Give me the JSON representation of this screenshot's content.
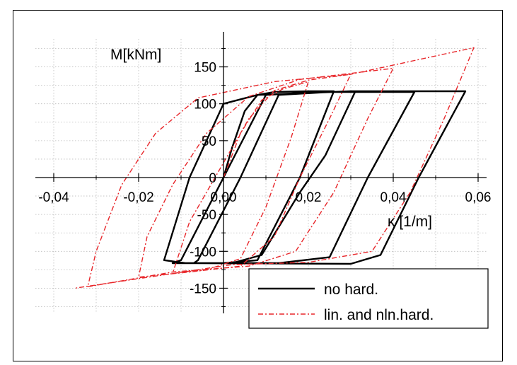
{
  "chart_data": {
    "type": "line",
    "title": "",
    "xlabel": "κ [1/m]",
    "ylabel": "M[kNm]",
    "xlim": [
      -0.05,
      0.062
    ],
    "ylim": [
      -190,
      190
    ],
    "xticks": [
      -0.04,
      -0.02,
      0.0,
      0.02,
      0.04,
      0.06
    ],
    "xtick_labels": [
      "-0,04",
      "-0,02",
      "0,00",
      "0,02",
      "0,04",
      "0,06"
    ],
    "yticks": [
      -150,
      -100,
      -50,
      0,
      50,
      100,
      150
    ],
    "ytick_labels": [
      "-150",
      "-100",
      "-50",
      "0",
      "50",
      "100",
      "150"
    ],
    "grid": "dotted",
    "legend": "bottom-right",
    "series": [
      {
        "name": "no hard.",
        "color": "#000000",
        "style": "solid",
        "points": [
          [
            0.0,
            0
          ],
          [
            0.002,
            40
          ],
          [
            0.005,
            90
          ],
          [
            0.008,
            112
          ],
          [
            0.012,
            116
          ],
          [
            0.02,
            117
          ],
          [
            0.026,
            117
          ],
          [
            0.018,
            0
          ],
          [
            0.008,
            -112
          ],
          [
            0.0,
            -116
          ],
          [
            -0.012,
            -116
          ],
          [
            -0.01,
            -112
          ],
          [
            0.0,
            0
          ],
          [
            0.01,
            112
          ],
          [
            0.022,
            116
          ],
          [
            0.031,
            116
          ],
          [
            0.024,
            30
          ],
          [
            0.018,
            -20
          ],
          [
            0.009,
            -105
          ],
          [
            0.002,
            -116
          ],
          [
            -0.007,
            -116
          ],
          [
            -0.006,
            -112
          ],
          [
            0.004,
            0
          ],
          [
            0.013,
            112
          ],
          [
            0.025,
            116
          ],
          [
            0.045,
            116
          ],
          [
            0.034,
            0
          ],
          [
            0.025,
            -108
          ],
          [
            0.013,
            -116
          ],
          [
            -0.009,
            -116
          ],
          [
            -0.014,
            -112
          ],
          [
            -0.008,
            0
          ],
          [
            0.0,
            100
          ],
          [
            0.008,
            112
          ],
          [
            0.03,
            117
          ],
          [
            0.057,
            117
          ],
          [
            0.046,
            0
          ],
          [
            0.037,
            -105
          ],
          [
            0.03,
            -117
          ],
          [
            -0.007,
            -116
          ]
        ]
      },
      {
        "name": "lin. and nln.hard.",
        "color": "#e8262a",
        "style": "dashdot",
        "points": [
          [
            0.0,
            0
          ],
          [
            0.004,
            60
          ],
          [
            0.009,
            105
          ],
          [
            0.014,
            120
          ],
          [
            0.02,
            130
          ],
          [
            0.016,
            55
          ],
          [
            0.01,
            -40
          ],
          [
            0.004,
            -110
          ],
          [
            -0.004,
            -125
          ],
          [
            -0.012,
            -130
          ],
          [
            -0.008,
            -60
          ],
          [
            0.0,
            20
          ],
          [
            0.006,
            80
          ],
          [
            0.012,
            118
          ],
          [
            0.02,
            132
          ],
          [
            0.03,
            140
          ],
          [
            0.025,
            80
          ],
          [
            0.018,
            0
          ],
          [
            0.012,
            -80
          ],
          [
            0.004,
            -120
          ],
          [
            -0.008,
            -128
          ],
          [
            -0.02,
            -135
          ],
          [
            -0.018,
            -80
          ],
          [
            -0.012,
            -10
          ],
          [
            -0.004,
            60
          ],
          [
            0.006,
            110
          ],
          [
            0.018,
            133
          ],
          [
            0.04,
            148
          ],
          [
            0.034,
            80
          ],
          [
            0.026,
            -20
          ],
          [
            0.017,
            -100
          ],
          [
            0.006,
            -120
          ],
          [
            -0.012,
            -128
          ],
          [
            -0.032,
            -148
          ],
          [
            -0.03,
            -100
          ],
          [
            -0.024,
            -10
          ],
          [
            -0.016,
            60
          ],
          [
            -0.006,
            108
          ],
          [
            0.012,
            130
          ],
          [
            0.03,
            140
          ],
          [
            0.059,
            176
          ],
          [
            0.052,
            80
          ],
          [
            0.044,
            -20
          ],
          [
            0.035,
            -100
          ],
          [
            0.02,
            -115
          ],
          [
            0.002,
            -118
          ],
          [
            -0.035,
            -150
          ]
        ]
      }
    ]
  }
}
